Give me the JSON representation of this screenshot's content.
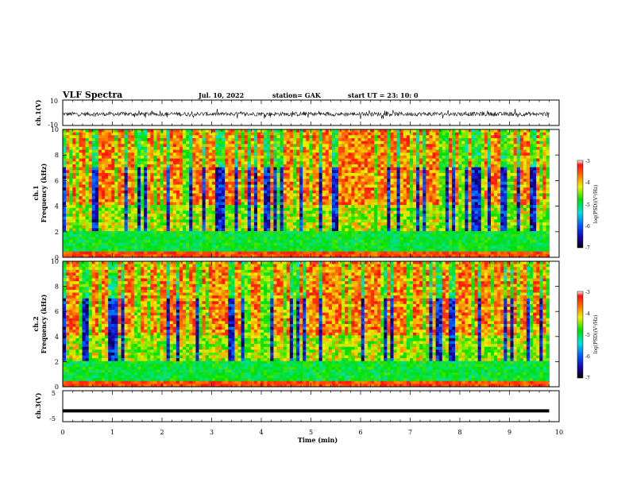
{
  "header": {
    "title": "VLF Spectra",
    "date": "Jul. 10, 2022",
    "station": "station= GAK",
    "start": "start  UT =   23: 10: 0"
  },
  "chart_data": [
    {
      "type": "line",
      "panel": "ch1-waveform",
      "ylabel": "ch.1(V)",
      "ylim": [
        -10,
        10
      ],
      "yticks": [
        "10",
        "-10"
      ],
      "xlim": [
        0,
        10
      ],
      "series": [
        {
          "values": "noise waveform around -1 V, amplitude about ±3 V, from 0 to 9.8 min"
        }
      ]
    },
    {
      "type": "heatmap",
      "panel": "ch1-spectrogram",
      "ylabel_top": "ch.1",
      "ylabel": "Frequency  (kHz)",
      "ylim": [
        0,
        10
      ],
      "yticks": [
        "0",
        "2",
        "4",
        "6",
        "8",
        "10"
      ],
      "xlim": [
        0,
        10
      ],
      "data_xmax": 9.8,
      "colorbar": {
        "label": "log(PSD)(V²/Hz)",
        "range": [
          -7,
          -3
        ],
        "ticks": [
          "-3",
          "-4",
          "-5",
          "-6",
          "-7"
        ]
      }
    },
    {
      "type": "heatmap",
      "panel": "ch2-spectrogram",
      "ylabel_top": "ch.2",
      "ylabel": "Frequency  (kHz)",
      "ylim": [
        0,
        10
      ],
      "yticks": [
        "0",
        "2",
        "4",
        "6",
        "8",
        "10"
      ],
      "xlim": [
        0,
        10
      ],
      "data_xmax": 9.8,
      "colorbar": {
        "label": "log(PSD)(V²/Hz)",
        "range": [
          -7,
          -3
        ],
        "ticks": [
          "-3",
          "-4",
          "-5",
          "-6",
          "-7"
        ]
      }
    },
    {
      "type": "line",
      "panel": "ch3-waveform",
      "ylabel": "ch.3(V)",
      "ylim": [
        -5,
        5
      ],
      "yticks": [
        "5",
        "-5"
      ],
      "xlim": [
        0,
        10
      ],
      "series": [
        {
          "values": "constant at about -1.5 V from 0 to 9.8 min"
        }
      ]
    }
  ],
  "xaxis": {
    "label": "Time  (min)",
    "ticks": [
      "0",
      "1",
      "2",
      "3",
      "4",
      "5",
      "6",
      "7",
      "8",
      "9",
      "10"
    ]
  }
}
